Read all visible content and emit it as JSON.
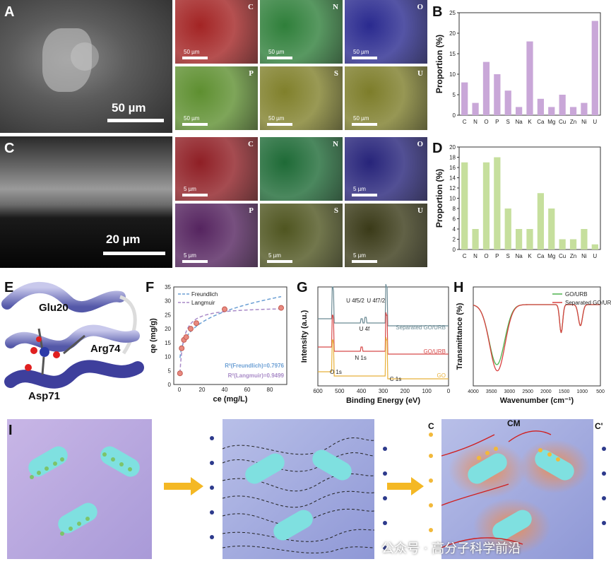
{
  "panels": {
    "A": {
      "label": "A",
      "scale": "50 µm"
    },
    "B": {
      "label": "B",
      "ylabel": "Proportion (%)"
    },
    "C": {
      "label": "C",
      "scale": "20 µm"
    },
    "D": {
      "label": "D",
      "ylabel": "Proportion (%)"
    },
    "E": {
      "label": "E",
      "residues": [
        "Glu20",
        "Arg74",
        "Asp71"
      ]
    },
    "F": {
      "label": "F",
      "legend": [
        "Freundlich",
        "Langmuir"
      ],
      "xlabel": "ce (mg/L)",
      "ylabel": "qe (mg/g)",
      "r2_freundlich": "R²(Freundlich)=0.7976",
      "r2_langmuir": "R²(Langmuir)=0.9499"
    },
    "G": {
      "label": "G",
      "xlabel": "Binding Energy (eV)",
      "ylabel": "Intensity (a.u.)",
      "traces": [
        "Separated GO/URB",
        "GO/URB",
        "GO"
      ],
      "annotations": [
        "U 4f5/2",
        "U 4f7/2",
        "U 4f",
        "N 1s",
        "O 1s",
        "C 1s"
      ]
    },
    "H": {
      "label": "H",
      "xlabel": "Wavenumber (cm⁻¹)",
      "ylabel": "Transmittance (%)",
      "legend": [
        "GO/URB",
        "Separated GO/URB"
      ]
    },
    "I": {
      "label": "I",
      "c_left": "C",
      "c_mid": "CM",
      "c_right": "C'"
    }
  },
  "maps_top": [
    {
      "element": "C",
      "scale": "50 µm",
      "color": "#a32424"
    },
    {
      "element": "N",
      "scale": "50 µm",
      "color": "#2f7f3a"
    },
    {
      "element": "O",
      "scale": "50 µm",
      "color": "#2a2a8f"
    },
    {
      "element": "P",
      "scale": "50 µm",
      "color": "#5e8f30"
    },
    {
      "element": "S",
      "scale": "50 µm",
      "color": "#80802b"
    },
    {
      "element": "U",
      "scale": "50 µm",
      "color": "#7d7d2a"
    }
  ],
  "maps_bottom": [
    {
      "element": "C",
      "scale": "5 µm",
      "color": "#8f1f25"
    },
    {
      "element": "N",
      "scale": "",
      "color": "#1e6a36"
    },
    {
      "element": "O",
      "scale": "5 µm",
      "color": "#27247a"
    },
    {
      "element": "P",
      "scale": "5 µm",
      "color": "#55245f"
    },
    {
      "element": "S",
      "scale": "5 µm",
      "color": "#4f5520"
    },
    {
      "element": "U",
      "scale": "5 µm",
      "color": "#3a3a18"
    }
  ],
  "chart_data": [
    {
      "type": "bar",
      "panel": "B",
      "categories": [
        "C",
        "N",
        "O",
        "P",
        "S",
        "Na",
        "K",
        "Ca",
        "Mg",
        "Cu",
        "Zn",
        "Ni",
        "U"
      ],
      "values": [
        8,
        3,
        13,
        10,
        6,
        2,
        18,
        4,
        2,
        5,
        2,
        3,
        23
      ],
      "ylabel": "Proportion (%)",
      "ylim": [
        0,
        25
      ],
      "yticks": [
        0,
        5,
        10,
        15,
        20,
        25
      ],
      "color": "#c9a7d8"
    },
    {
      "type": "bar",
      "panel": "D",
      "categories": [
        "C",
        "N",
        "O",
        "P",
        "S",
        "Na",
        "K",
        "Ca",
        "Mg",
        "Cu",
        "Zn",
        "Ni",
        "U"
      ],
      "values": [
        17,
        4,
        17,
        18,
        8,
        4,
        4,
        11,
        8,
        2,
        2,
        4,
        1
      ],
      "ylabel": "Proportion (%)",
      "ylim": [
        0,
        20
      ],
      "yticks": [
        0,
        2,
        4,
        6,
        8,
        10,
        12,
        14,
        16,
        18,
        20
      ],
      "color": "#c6df9d"
    },
    {
      "type": "scatter",
      "panel": "F",
      "x": [
        0.5,
        2,
        4,
        6,
        10,
        15,
        40,
        90
      ],
      "y": [
        4,
        13,
        16,
        17,
        20,
        22,
        27,
        27.5
      ],
      "series": [
        {
          "name": "Freundlich"
        },
        {
          "name": "Langmuir"
        }
      ],
      "xlabel": "ce (mg/L)",
      "ylabel": "qe (mg/g)",
      "xlim": [
        -5,
        95
      ],
      "ylim": [
        0,
        35
      ],
      "xticks": [
        0,
        20,
        40,
        60,
        80
      ],
      "yticks": [
        0,
        5,
        10,
        15,
        20,
        25,
        30,
        35
      ]
    },
    {
      "type": "line",
      "panel": "G",
      "xlabel": "Binding Energy (eV)",
      "xlim": [
        600,
        0
      ],
      "xticks": [
        600,
        500,
        400,
        300,
        200,
        100,
        0
      ],
      "series": [
        {
          "name": "Separated GO/URB",
          "color": "#6b8a94"
        },
        {
          "name": "GO/URB",
          "color": "#d84a4a"
        },
        {
          "name": "GO",
          "color": "#e8b13a"
        }
      ]
    },
    {
      "type": "line",
      "panel": "H",
      "xlabel": "Wavenumber (cm⁻¹)",
      "ylabel": "Transmittance (%)",
      "xlim": [
        4000,
        500
      ],
      "xticks": [
        4000,
        3500,
        3000,
        2500,
        2000,
        1500,
        1000,
        500
      ],
      "series": [
        {
          "name": "GO/URB",
          "color": "#4db34d"
        },
        {
          "name": "Separated GO/URB",
          "color": "#d94040"
        }
      ]
    }
  ],
  "watermark": "公众号 · 高分子科学前沿"
}
